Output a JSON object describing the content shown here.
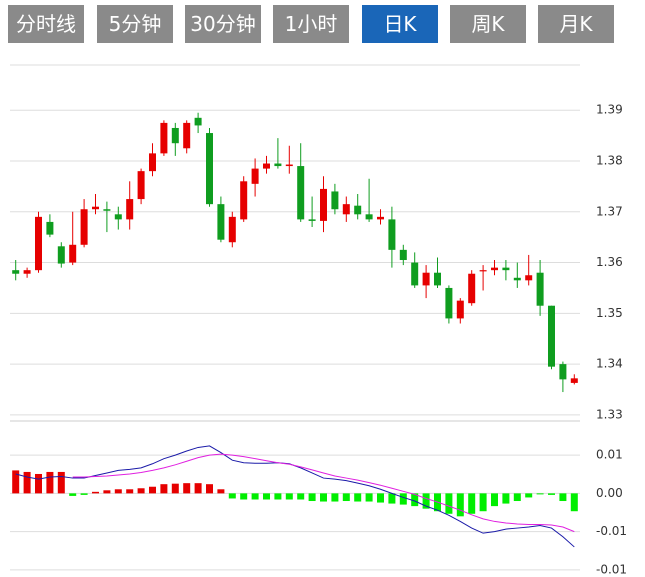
{
  "tabs": [
    "分时线",
    "5分钟",
    "30分钟",
    "1小时",
    "日K",
    "周K",
    "月K"
  ],
  "active_tab": 4,
  "chart_data": [
    {
      "type": "candlestick",
      "up_color": "#e60000",
      "down_color": "#0f9d1f",
      "open": [
        1.3585,
        1.3578,
        1.3585,
        1.368,
        1.3632,
        1.36,
        1.3635,
        1.3705,
        1.3705,
        1.3695,
        1.3685,
        1.3725,
        1.378,
        1.3815,
        1.3865,
        1.3825,
        1.3885,
        1.3855,
        1.3715,
        1.364,
        1.3685,
        1.3755,
        1.3785,
        1.3795,
        1.379,
        1.379,
        1.3685,
        1.3682,
        1.374,
        1.3695,
        1.3712,
        1.3695,
        1.3685,
        1.3685,
        1.3625,
        1.36,
        1.3555,
        1.358,
        1.355,
        1.349,
        1.352,
        1.3583,
        1.3585,
        1.359,
        1.357,
        1.3565,
        1.358,
        1.3515,
        1.34,
        1.3363
      ],
      "high": [
        1.3605,
        1.359,
        1.37,
        1.3695,
        1.364,
        1.37,
        1.3725,
        1.3735,
        1.372,
        1.371,
        1.376,
        1.3785,
        1.3835,
        1.388,
        1.3875,
        1.388,
        1.3895,
        1.3865,
        1.373,
        1.37,
        1.377,
        1.3805,
        1.381,
        1.3845,
        1.383,
        1.3835,
        1.373,
        1.377,
        1.3755,
        1.373,
        1.3735,
        1.3765,
        1.3705,
        1.371,
        1.3635,
        1.362,
        1.3595,
        1.361,
        1.3555,
        1.353,
        1.3585,
        1.3595,
        1.3605,
        1.3605,
        1.36,
        1.3615,
        1.3605,
        1.3515,
        1.3405,
        1.338
      ],
      "low": [
        1.3565,
        1.357,
        1.358,
        1.365,
        1.359,
        1.3595,
        1.363,
        1.3695,
        1.366,
        1.3665,
        1.3665,
        1.3715,
        1.377,
        1.381,
        1.381,
        1.3815,
        1.3855,
        1.371,
        1.364,
        1.363,
        1.368,
        1.373,
        1.3775,
        1.3785,
        1.3775,
        1.368,
        1.367,
        1.366,
        1.3695,
        1.368,
        1.3685,
        1.368,
        1.3675,
        1.359,
        1.3595,
        1.355,
        1.353,
        1.355,
        1.348,
        1.348,
        1.3515,
        1.3545,
        1.3575,
        1.3565,
        1.355,
        1.3555,
        1.3495,
        1.339,
        1.3345,
        1.336
      ],
      "close": [
        1.3578,
        1.3585,
        1.369,
        1.3655,
        1.3598,
        1.3635,
        1.3705,
        1.371,
        1.3702,
        1.3685,
        1.3725,
        1.378,
        1.3815,
        1.3875,
        1.3835,
        1.3875,
        1.387,
        1.3715,
        1.3645,
        1.369,
        1.376,
        1.3785,
        1.3795,
        1.379,
        1.3793,
        1.3685,
        1.3682,
        1.3745,
        1.3705,
        1.3715,
        1.3695,
        1.3685,
        1.369,
        1.3625,
        1.3605,
        1.3555,
        1.358,
        1.3555,
        1.349,
        1.3525,
        1.3578,
        1.3585,
        1.359,
        1.3585,
        1.3565,
        1.3575,
        1.3515,
        1.3395,
        1.337,
        1.3372
      ],
      "ylim": [
        1.3288,
        1.3989
      ],
      "yticks": [
        1.39,
        1.38,
        1.37,
        1.36,
        1.35,
        1.34,
        1.33
      ],
      "grid": true
    },
    {
      "type": "macd",
      "histogram": {
        "up_color": "#e60000",
        "down_color": "#00ee00",
        "values": [
          0.0045,
          0.0042,
          0.0038,
          0.0042,
          0.0042,
          -0.0005,
          -0.0003,
          0.0003,
          0.0006,
          0.0008,
          0.0008,
          0.001,
          0.0013,
          0.0018,
          0.0019,
          0.002,
          0.002,
          0.0018,
          0.0008,
          -0.001,
          -0.0012,
          -0.0012,
          -0.0012,
          -0.0012,
          -0.0012,
          -0.0012,
          -0.0015,
          -0.0016,
          -0.0016,
          -0.0015,
          -0.0016,
          -0.0016,
          -0.0018,
          -0.002,
          -0.0022,
          -0.0025,
          -0.003,
          -0.0035,
          -0.004,
          -0.0045,
          -0.004,
          -0.0035,
          -0.0025,
          -0.002,
          -0.0015,
          -0.0008,
          -0.0002,
          -0.0003,
          -0.0015,
          -0.0035
        ]
      },
      "series": [
        {
          "color": "#1a1aa8",
          "values": [
            0.0038,
            0.0032,
            0.0028,
            0.0032,
            0.0033,
            0.003,
            0.003,
            0.0035,
            0.004,
            0.0045,
            0.0047,
            0.005,
            0.0058,
            0.0068,
            0.0075,
            0.0083,
            0.009,
            0.0093,
            0.008,
            0.0065,
            0.006,
            0.0059,
            0.0059,
            0.006,
            0.0058,
            0.005,
            0.004,
            0.003,
            0.0028,
            0.0025,
            0.002,
            0.0015,
            0.0008,
            0.0,
            -0.0008,
            -0.0015,
            -0.0025,
            -0.0033,
            -0.0043,
            -0.0055,
            -0.0068,
            -0.0078,
            -0.0075,
            -0.007,
            -0.0068,
            -0.0066,
            -0.0063,
            -0.0068,
            -0.0085,
            -0.0105
          ]
        },
        {
          "color": "#e020e0",
          "values": [
            null,
            null,
            null,
            null,
            null,
            0.0032,
            0.0032,
            0.0033,
            0.0034,
            0.0036,
            0.0038,
            0.0041,
            0.0045,
            0.005,
            0.0056,
            0.0063,
            0.007,
            0.0075,
            0.0077,
            0.0075,
            0.0072,
            0.0068,
            0.0064,
            0.006,
            0.0057,
            0.0052,
            0.0046,
            0.004,
            0.0034,
            0.003,
            0.0026,
            0.0021,
            0.0016,
            0.001,
            0.0004,
            -0.0002,
            -0.001,
            -0.0017,
            -0.0025,
            -0.0033,
            -0.0042,
            -0.005,
            -0.0055,
            -0.0058,
            -0.006,
            -0.0061,
            -0.0061,
            -0.0062,
            -0.0066,
            -0.0075
          ]
        }
      ],
      "ylim": [
        -0.016,
        0.0134
      ],
      "yticks": [
        {
          "value": 0.0075,
          "label": "0.01"
        },
        {
          "value": 0,
          "label": "0.00"
        },
        {
          "value": -0.0075,
          "label": "-0.01"
        },
        {
          "value": -0.015,
          "label": "-0.01"
        }
      ],
      "grid": true
    }
  ]
}
